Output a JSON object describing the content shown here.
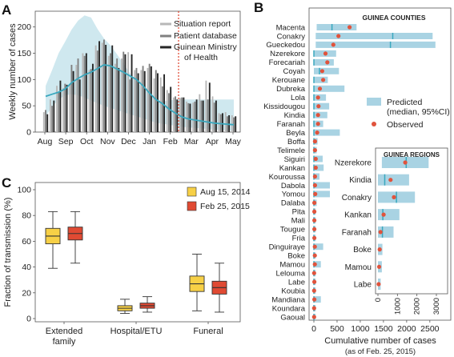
{
  "panels": {
    "a": "A",
    "b": "B",
    "c": "C"
  },
  "colors": {
    "report": "#b8b8b8",
    "patient": "#808080",
    "ministry": "#262626",
    "model": "#3aa8be",
    "ci": "#cfe8ef",
    "cutoff": "#e0402a",
    "observed": "#e0533c",
    "pred": "#a9d3e3",
    "aug": "#f7d046",
    "feb": "#e04a33"
  },
  "chart_data": [
    {
      "id": "A",
      "type": "bar",
      "ylabel": "Weekly number of cases",
      "xlabel": "",
      "xtick_labels": [
        "Aug",
        "Sep",
        "Oct",
        "Nov",
        "Dec",
        "Jan",
        "Feb",
        "Mar",
        "Apr",
        "May"
      ],
      "ylim": [
        0,
        230
      ],
      "yticks": [
        0,
        50,
        100,
        150,
        200
      ],
      "legend": [
        "Situation report",
        "Patient database",
        "Guinean Ministry of Health"
      ],
      "legend_position": "top-right",
      "week_index": [
        0,
        1,
        2,
        3,
        4,
        5,
        6,
        7,
        8,
        9,
        10,
        11,
        12,
        13,
        14,
        15,
        16,
        17,
        18,
        19,
        20,
        21,
        22,
        23,
        24,
        25,
        26,
        27,
        28,
        29
      ],
      "series": [
        {
          "name": "Situation report",
          "values": [
            38,
            62,
            88,
            84,
            90,
            128,
            150,
            118,
            165,
            170,
            145,
            130,
            140,
            152,
            118,
            118,
            122,
            102,
            104,
            80,
            66,
            65,
            58,
            56,
            72,
            98,
            68,
            36,
            38,
            32
          ]
        },
        {
          "name": "Patient database",
          "values": [
            42,
            50,
            76,
            92,
            128,
            140,
            145,
            120,
            155,
            176,
            150,
            140,
            153,
            100,
            122,
            126,
            130,
            118,
            87,
            74,
            68,
            66,
            55,
            58,
            60,
            62,
            56,
            34,
            30,
            28
          ]
        },
        {
          "name": "Guinean Ministry of Health",
          "values": [
            34,
            60,
            98,
            90,
            116,
            100,
            150,
            130,
            173,
            166,
            165,
            122,
            148,
            148,
            112,
            116,
            125,
            112,
            110,
            86,
            62,
            66,
            54,
            62,
            60,
            94,
            60,
            36,
            32,
            30
          ]
        }
      ],
      "model": {
        "median": [
          68,
          72,
          76,
          82,
          94,
          102,
          109,
          114,
          121,
          128,
          126,
          120,
          114,
          107,
          100,
          88,
          74,
          62,
          54,
          44,
          36,
          29,
          25,
          23,
          21,
          19,
          17,
          16,
          15,
          14
        ],
        "ci_low": [
          30,
          48,
          62,
          70,
          72,
          70,
          66,
          60,
          55,
          50,
          46,
          42,
          38,
          34,
          30,
          26,
          22,
          18,
          16,
          14,
          12,
          10,
          9,
          8,
          7,
          6,
          5,
          4,
          3,
          3
        ],
        "ci_high": [
          88,
          118,
          150,
          172,
          195,
          212,
          222,
          218,
          196,
          178,
          165,
          148,
          130,
          112,
          96,
          84,
          72,
          62,
          58,
          60,
          62,
          62,
          62,
          62,
          62,
          62,
          62,
          62,
          62,
          62
        ]
      },
      "cutoff": "Feb 25, 2015"
    },
    {
      "id": "B",
      "type": "bar",
      "title": "GUINEA COUNTIES",
      "xlabel": "Cumulative number of cases",
      "xlabel2": "(as of Feb. 25, 2015)",
      "xlim": [
        0,
        2900
      ],
      "xticks": [
        0,
        500,
        1000,
        1500,
        2000,
        2500
      ],
      "legend": [
        "Predicted",
        "(median, 95%CI)",
        "Observed"
      ],
      "categories": [
        "Macenta",
        "Conakry",
        "Gueckedou",
        "Nzerekore",
        "Forecariah",
        "Coyah",
        "Kerouane",
        "Dubreka",
        "Lola",
        "Kissidougou",
        "Kindia",
        "Faranah",
        "Beyla",
        "Boffa",
        "Telimele",
        "Siguiri",
        "Kankan",
        "Kouroussa",
        "Dabola",
        "Yomou",
        "Dalaba",
        "Pita",
        "Mali",
        "Tougue",
        "Fria",
        "Dinguiraye",
        "Boke",
        "Mamou",
        "Lelouma",
        "Labe",
        "Koubia",
        "Mandiana",
        "Koundara",
        "Gaoual"
      ],
      "pred_low": [
        60,
        40,
        40,
        0,
        0,
        0,
        0,
        0,
        0,
        0,
        0,
        0,
        0,
        0,
        0,
        0,
        0,
        0,
        0,
        0,
        0,
        0,
        0,
        0,
        0,
        0,
        0,
        0,
        0,
        0,
        0,
        0,
        0,
        0
      ],
      "pred_high": [
        920,
        2560,
        2620,
        480,
        430,
        540,
        300,
        660,
        260,
        330,
        290,
        200,
        560,
        80,
        60,
        190,
        210,
        120,
        360,
        360,
        60,
        40,
        40,
        40,
        40,
        200,
        40,
        150,
        40,
        40,
        40,
        150,
        40,
        40
      ],
      "pred_median": [
        390,
        1700,
        1650,
        0,
        0,
        120,
        0,
        0,
        0,
        0,
        0,
        0,
        0,
        0,
        0,
        0,
        0,
        0,
        0,
        0,
        0,
        0,
        0,
        0,
        0,
        0,
        0,
        0,
        0,
        0,
        0,
        0,
        0,
        0
      ],
      "observed": [
        770,
        530,
        420,
        250,
        290,
        180,
        200,
        130,
        90,
        100,
        90,
        90,
        70,
        25,
        25,
        40,
        40,
        25,
        25,
        30,
        10,
        10,
        10,
        10,
        10,
        20,
        20,
        20,
        5,
        10,
        5,
        10,
        5,
        5
      ]
    },
    {
      "id": "B-inset",
      "type": "bar",
      "title": "GUINEA REGIONS",
      "xlim": [
        0,
        3200
      ],
      "xticks": [
        0,
        1000,
        2000,
        3000
      ],
      "categories": [
        "Nzerekore",
        "Kindia",
        "Conakry",
        "Kankan",
        "Faranah",
        "Boke",
        "Mamou",
        "Labe"
      ],
      "pred_low": [
        200,
        0,
        0,
        0,
        0,
        0,
        0,
        0
      ],
      "pred_high": [
        2600,
        1600,
        1900,
        1100,
        800,
        230,
        200,
        140
      ],
      "pred_median": [
        1450,
        350,
        950,
        250,
        230,
        0,
        0,
        0
      ],
      "observed": [
        1400,
        650,
        820,
        290,
        130,
        90,
        60,
        35
      ]
    },
    {
      "id": "C",
      "type": "box",
      "ylabel": "Fraction of transmission (%)",
      "ylim": [
        0,
        100
      ],
      "yticks": [
        0,
        20,
        40,
        60,
        80,
        100
      ],
      "categories": [
        "Extended family",
        "Hospital/ETU",
        "Funeral"
      ],
      "category_lines": [
        [
          "Extended",
          "family"
        ],
        [
          "Hospital/ETU"
        ],
        [
          "Funeral"
        ]
      ],
      "legend": [
        "Aug 15, 2014",
        "Feb 25, 2015"
      ],
      "legend_position": "top-right",
      "series": [
        {
          "name": "Aug 15, 2014",
          "boxes": [
            {
              "min": 39,
              "q1": 58,
              "median": 64,
              "q3": 70,
              "max": 83
            },
            {
              "min": 4,
              "q1": 6,
              "median": 8,
              "q3": 10,
              "max": 15
            },
            {
              "min": 6,
              "q1": 21,
              "median": 27,
              "q3": 33,
              "max": 50
            }
          ]
        },
        {
          "name": "Feb 25, 2015",
          "boxes": [
            {
              "min": 43,
              "q1": 61,
              "median": 66,
              "q3": 71,
              "max": 83
            },
            {
              "min": 5,
              "q1": 8,
              "median": 10,
              "q3": 12,
              "max": 17
            },
            {
              "min": 5,
              "q1": 19,
              "median": 24,
              "q3": 29,
              "max": 43
            }
          ]
        }
      ]
    }
  ]
}
